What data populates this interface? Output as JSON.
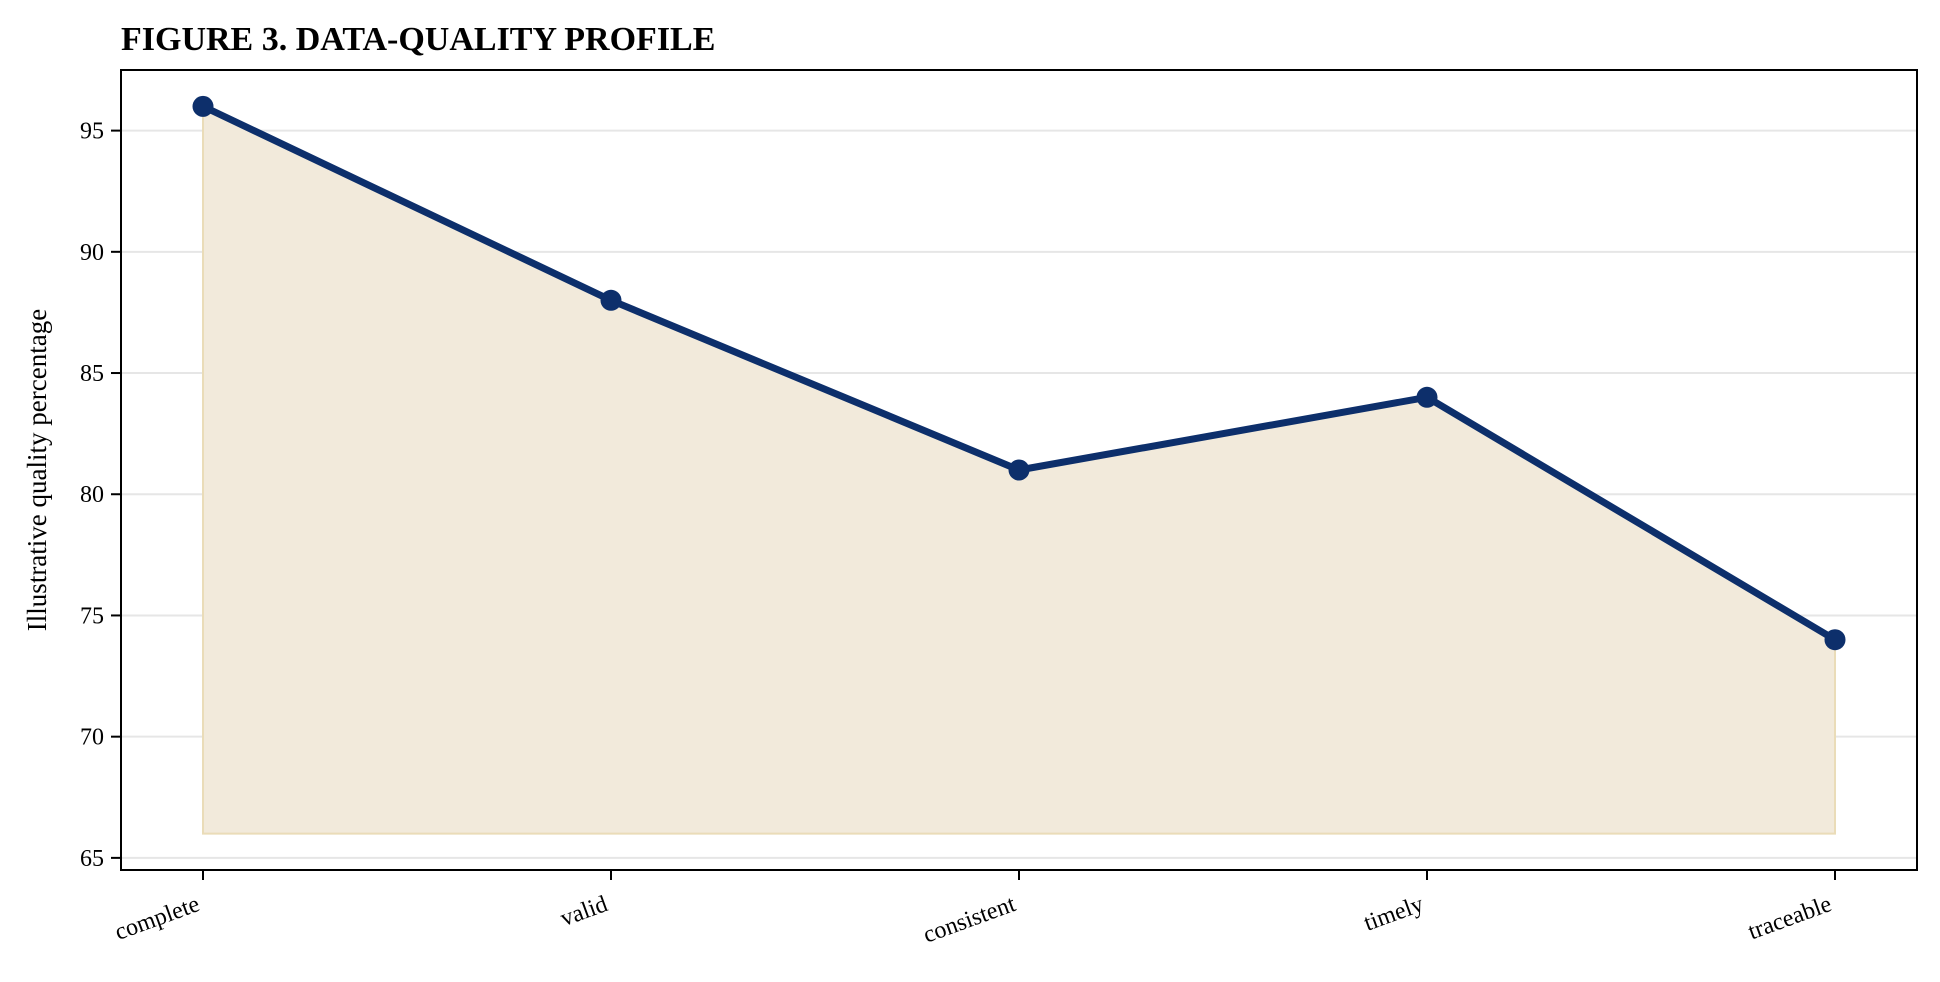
{
  "chart_data": {
    "type": "area",
    "title": "FIGURE 3. DATA-QUALITY PROFILE",
    "xlabel": "",
    "ylabel": "Illustrative quality percentage",
    "categories": [
      "complete",
      "valid",
      "consistent",
      "timely",
      "traceable"
    ],
    "series": [
      {
        "values": [
          96,
          88,
          81,
          84,
          74
        ]
      }
    ],
    "fill_baseline": 66,
    "ylim": [
      64.5,
      97.5
    ],
    "yticks": [
      65,
      70,
      75,
      80,
      85,
      90,
      95
    ],
    "grid": "horizontal",
    "legend": "none",
    "colors": {
      "line": "#0d2f6b",
      "fill": "#f2eadb",
      "fill_edge": "#eadcb8",
      "grid": "#e6e6e6",
      "axis": "#000000"
    }
  }
}
